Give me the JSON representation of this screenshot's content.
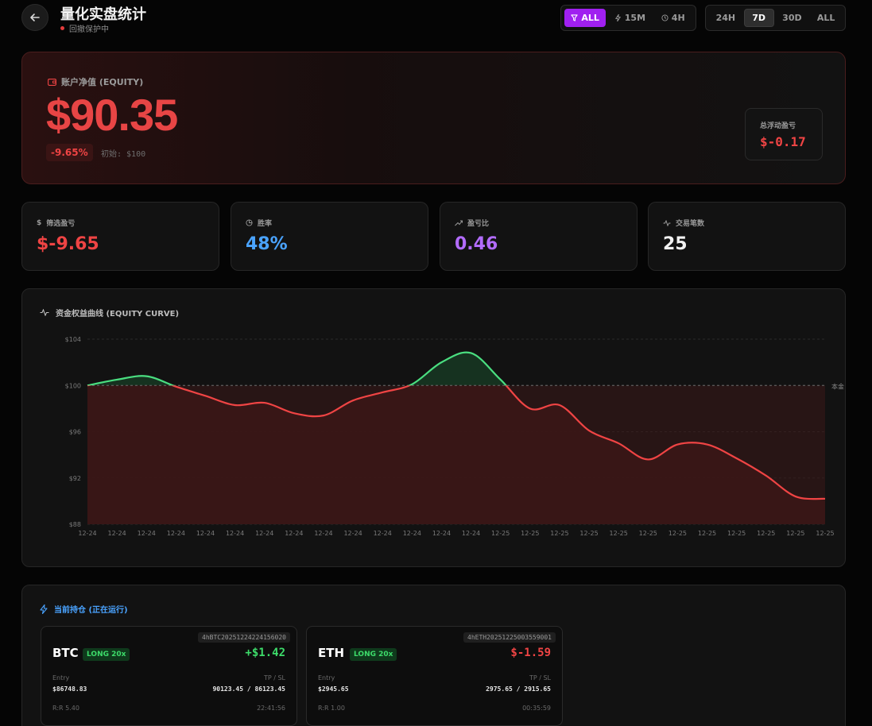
{
  "header": {
    "title": "量化实盘统计",
    "status": "回撤保护中",
    "back_icon": "arrow-left-icon",
    "filter_group": [
      {
        "label": "ALL",
        "icon": "filter-icon",
        "active": true
      },
      {
        "label": "15M",
        "icon": "bolt-icon",
        "active": false
      },
      {
        "label": "4H",
        "icon": "clock-icon",
        "active": false
      }
    ],
    "range_group": [
      {
        "label": "24H",
        "active": false
      },
      {
        "label": "7D",
        "active": true
      },
      {
        "label": "30D",
        "active": false
      },
      {
        "label": "ALL",
        "active": false
      }
    ]
  },
  "equity": {
    "label": "账户净值 (EQUITY)",
    "value": "$90.35",
    "change_pct": "-9.65%",
    "initial": "初始: $100",
    "floating_label": "总浮动盈亏",
    "floating_value": "$-0.17"
  },
  "stats": [
    {
      "label": "筛选盈亏",
      "value": "$-9.65",
      "icon": "dollar-icon",
      "color": "#ef4444"
    },
    {
      "label": "胜率",
      "value": "48%",
      "icon": "pie-icon",
      "color": "#4aa3ff"
    },
    {
      "label": "盈亏比",
      "value": "0.46",
      "icon": "trend-up-icon",
      "color": "#b36cff"
    },
    {
      "label": "交易笔数",
      "value": "25",
      "icon": "activity-icon",
      "color": "#f2f2f2"
    }
  ],
  "chart": {
    "title": "资金权益曲线 (EQUITY CURVE)",
    "baseline_label": "本金"
  },
  "chart_data": {
    "type": "area",
    "title": "资金权益曲线 (EQUITY CURVE)",
    "x": [
      "12-24",
      "12-24",
      "12-24",
      "12-24",
      "12-24",
      "12-24",
      "12-24",
      "12-24",
      "12-24",
      "12-24",
      "12-24",
      "12-24",
      "12-24",
      "12-24",
      "12-25",
      "12-25",
      "12-25",
      "12-25",
      "12-25",
      "12-25",
      "12-25",
      "12-25",
      "12-25",
      "12-25",
      "12-25",
      "12-25"
    ],
    "values": [
      100.0,
      100.5,
      100.8,
      99.9,
      99.1,
      98.3,
      98.5,
      97.6,
      97.4,
      98.7,
      99.4,
      100.1,
      102.0,
      102.8,
      100.5,
      98.0,
      98.3,
      96.1,
      95.0,
      93.6,
      94.9,
      94.9,
      93.7,
      92.2,
      90.4,
      90.2
    ],
    "ylim": [
      88,
      104
    ],
    "yticks": [
      "$104",
      "$100",
      "$96",
      "$92",
      "$88"
    ],
    "ytick_values": [
      104,
      100,
      96,
      92,
      88
    ],
    "baseline": 100,
    "grid": true,
    "colors": {
      "above": "#4ade80",
      "below": "#ef4444"
    }
  },
  "positions": {
    "title": "当前持仓 (正在运行)",
    "items": [
      {
        "id": "4hBTC20251224224156020",
        "symbol": "BTC",
        "side": "LONG 20x",
        "pnl": "+$1.42",
        "pnl_color": "#3ddc6a",
        "entry_label": "Entry",
        "entry": "$86748.83",
        "tpsl_label": "TP / SL",
        "tpsl": "90123.45 / 86123.45",
        "rr": "R:R 5.40",
        "time": "22:41:56"
      },
      {
        "id": "4hETH20251225003559001",
        "symbol": "ETH",
        "side": "LONG 20x",
        "pnl": "$-1.59",
        "pnl_color": "#ef4444",
        "entry_label": "Entry",
        "entry": "$2945.65",
        "tpsl_label": "TP / SL",
        "tpsl": "2975.65 / 2915.65",
        "rr": "R:R 1.00",
        "time": "00:35:59"
      }
    ]
  }
}
